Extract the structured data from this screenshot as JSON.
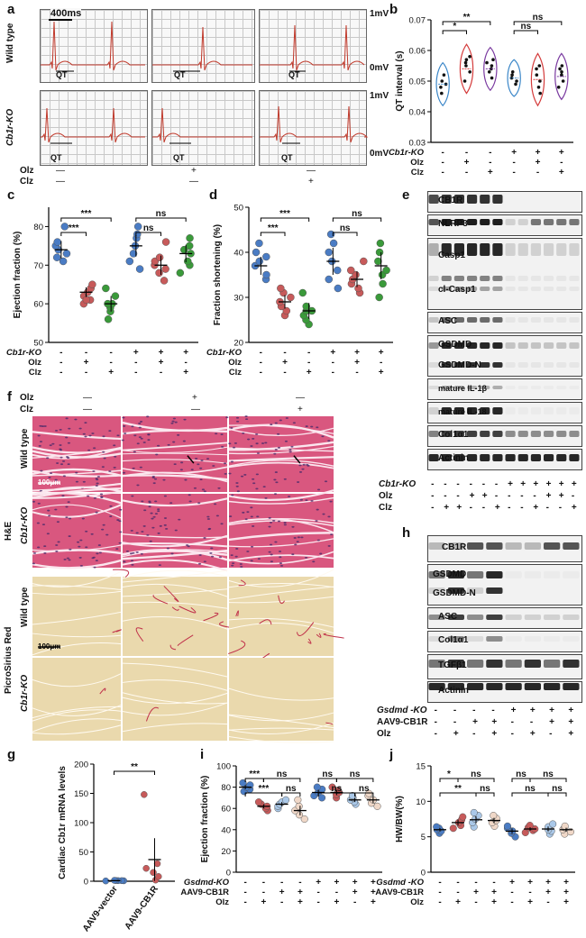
{
  "panel_letters": {
    "a": "a",
    "b": "b",
    "c": "c",
    "d": "d",
    "e": "e",
    "f": "f",
    "g": "g",
    "h": "h",
    "i": "i",
    "j": "j"
  },
  "panel_a": {
    "scale_time": "400ms",
    "row_labels": [
      "Wild type",
      "Cb1r-KO"
    ],
    "volt_labels": [
      "1mV",
      "0mV",
      "1mV",
      "0mV"
    ],
    "qt_label": "QT",
    "treat_rows": [
      {
        "label": "Olz",
        "values": [
          "—",
          "+",
          "—"
        ]
      },
      {
        "label": "Clz",
        "values": [
          "—",
          "—",
          "+"
        ]
      }
    ],
    "trace_color": "#c0392b"
  },
  "panel_b": {
    "treat_rows": [
      {
        "label": "Cb1r-KO",
        "values": [
          "-",
          "-",
          "-",
          "+",
          "+",
          "+"
        ]
      },
      {
        "label": "Olz",
        "values": [
          "-",
          "+",
          "-",
          "-",
          "+",
          "-"
        ]
      },
      {
        "label": "Clz",
        "values": [
          "-",
          "-",
          "+",
          "-",
          "-",
          "+"
        ]
      }
    ],
    "sig_labels": [
      "*",
      "**",
      "ns",
      "ns"
    ]
  },
  "panel_c": {
    "treat_rows": [
      {
        "label": "Cb1r-KO",
        "values": [
          "-",
          "-",
          "-",
          "+",
          "+",
          "+"
        ]
      },
      {
        "label": "Olz",
        "values": [
          "-",
          "+",
          "-",
          "-",
          "+",
          "-"
        ]
      },
      {
        "label": "Clz",
        "values": [
          "-",
          "-",
          "+",
          "-",
          "-",
          "+"
        ]
      }
    ],
    "sig_labels": [
      "***",
      "***",
      "ns",
      "ns"
    ]
  },
  "panel_d": {
    "treat_rows": [
      {
        "label": "Cb1r-KO",
        "values": [
          "-",
          "-",
          "-",
          "+",
          "+",
          "+"
        ]
      },
      {
        "label": "Olz",
        "values": [
          "-",
          "+",
          "-",
          "-",
          "+",
          "-"
        ]
      },
      {
        "label": "Clz",
        "values": [
          "-",
          "-",
          "+",
          "-",
          "-",
          "+"
        ]
      }
    ],
    "sig_labels": [
      "***",
      "***",
      "ns",
      "ns"
    ]
  },
  "panel_e": {
    "bands": [
      "CB1R",
      "NLRP3",
      "Casp1",
      "cl-Casp1",
      "ASC",
      "GSDMD",
      "GSDMD-N",
      "mature IL-1β",
      "mature IL-18",
      "Col1α1",
      "Actinin"
    ],
    "treat_rows": [
      {
        "label": "Cb1r-KO",
        "values": [
          "-",
          "-",
          "-",
          "-",
          "-",
          "-",
          "+",
          "+",
          "+",
          "+",
          "+",
          "+"
        ]
      },
      {
        "label": "Olz",
        "values": [
          "-",
          "-",
          "-",
          "+",
          "+",
          "-",
          "-",
          "-",
          "-",
          "+",
          "+",
          "-"
        ]
      },
      {
        "label": "Clz",
        "values": [
          "-",
          "+",
          "+",
          "-",
          "-",
          "+",
          "-",
          "-",
          "+",
          "-",
          "-",
          "+"
        ]
      }
    ]
  },
  "panel_f": {
    "col_treat": [
      {
        "label": "Olz",
        "values": [
          "—",
          "+",
          "—"
        ]
      },
      {
        "label": "Clz",
        "values": [
          "—",
          "—",
          "+"
        ]
      }
    ],
    "group_labels": [
      "H&E",
      "PicroSirius Red"
    ],
    "row_labels": [
      "Wild type",
      "Cb1r-KO",
      "Wild type",
      "Cb1r-KO"
    ],
    "scale_he": "100μm",
    "scale_psr": "100μm",
    "he_color": "#d9577f",
    "psr_color": "#ead9ad"
  },
  "panel_h": {
    "bands": [
      "CB1R",
      "GSDMD",
      "GSDMD-N",
      "ASC",
      "Col1α1",
      "TGFβ1",
      "Actinin"
    ],
    "treat_rows": [
      {
        "label": "Gsdmd -KO",
        "values": [
          "-",
          "-",
          "-",
          "-",
          "+",
          "+",
          "+",
          "+"
        ]
      },
      {
        "label": "AAV9-CB1R",
        "values": [
          "-",
          "-",
          "+",
          "+",
          "-",
          "-",
          "+",
          "+"
        ]
      },
      {
        "label": "Olz",
        "values": [
          "-",
          "+",
          "-",
          "+",
          "-",
          "+",
          "-",
          "+"
        ]
      }
    ]
  },
  "panel_i": {
    "treat_rows": [
      {
        "label": "Gsdmd-KO",
        "values": [
          "-",
          "-",
          "-",
          "-",
          "+",
          "+",
          "+",
          "+"
        ]
      },
      {
        "label": "AAV9-CB1R",
        "values": [
          "-",
          "-",
          "+",
          "+",
          "-",
          "-",
          "+",
          "+"
        ]
      },
      {
        "label": "Olz",
        "values": [
          "-",
          "+",
          "-",
          "+",
          "-",
          "+",
          "-",
          "+"
        ]
      }
    ],
    "sig_labels": [
      "***",
      "ns",
      "***",
      "ns",
      "ns",
      "ns",
      "ns",
      "ns"
    ]
  },
  "panel_j": {
    "treat_rows": [
      {
        "label": "Gsdmd -KO",
        "values": [
          "-",
          "-",
          "-",
          "-",
          "+",
          "+",
          "+",
          "+"
        ]
      },
      {
        "label": "AAV9-CB1R",
        "values": [
          "-",
          "-",
          "+",
          "+",
          "-",
          "-",
          "+",
          "+"
        ]
      },
      {
        "label": "Olz",
        "values": [
          "-",
          "+",
          "-",
          "+",
          "-",
          "+",
          "-",
          "+"
        ]
      }
    ],
    "sig_labels": [
      "*",
      "ns",
      "**",
      "ns",
      "ns",
      "ns",
      "ns",
      "ns"
    ]
  },
  "panel_g": {
    "sig_labels": [
      "**"
    ]
  },
  "chart_data": [
    {
      "id": "b",
      "type": "violin",
      "ylabel": "QT interval (s)",
      "ylim": [
        0.03,
        0.07
      ],
      "yticks": [
        0.03,
        0.04,
        0.05,
        0.06,
        0.07
      ],
      "colors": [
        "#3a86c8",
        "#d43a3a",
        "#7a3aa0",
        "#3a86c8",
        "#d43a3a",
        "#7a3aa0"
      ],
      "series": [
        {
          "values": [
            0.046,
            0.048,
            0.049,
            0.05,
            0.052
          ]
        },
        {
          "values": [
            0.05,
            0.053,
            0.055,
            0.056,
            0.057,
            0.058
          ]
        },
        {
          "values": [
            0.051,
            0.053,
            0.054,
            0.055,
            0.056,
            0.057
          ]
        },
        {
          "values": [
            0.049,
            0.05,
            0.051,
            0.052,
            0.053
          ]
        },
        {
          "values": [
            0.046,
            0.048,
            0.05,
            0.052,
            0.054,
            0.055
          ]
        },
        {
          "values": [
            0.048,
            0.05,
            0.052,
            0.053,
            0.054,
            0.055
          ]
        }
      ]
    },
    {
      "id": "c",
      "type": "scatter",
      "ylabel": "Ejection fraction (%)",
      "ylim": [
        50,
        85
      ],
      "yticks": [
        50,
        60,
        70,
        80
      ],
      "colors": [
        "#4a7cc4",
        "#c75a5a",
        "#3a9a3a",
        "#4a7cc4",
        "#c75a5a",
        "#3a9a3a"
      ],
      "series": [
        {
          "values": [
            71,
            73,
            74,
            75,
            76,
            80,
            72
          ],
          "mean": 74
        },
        {
          "values": [
            60,
            61,
            62,
            63,
            64,
            65,
            61
          ],
          "mean": 63
        },
        {
          "values": [
            56,
            58,
            59,
            60,
            60,
            62,
            64
          ],
          "mean": 60
        },
        {
          "values": [
            69,
            71,
            73,
            75,
            77,
            78,
            80
          ],
          "mean": 75
        },
        {
          "values": [
            66,
            68,
            69,
            70,
            71,
            72,
            76
          ],
          "mean": 70
        },
        {
          "values": [
            68,
            70,
            71,
            73,
            74,
            75,
            77
          ],
          "mean": 73
        }
      ]
    },
    {
      "id": "d",
      "type": "scatter",
      "ylabel": "Fraction shortening (%)",
      "ylim": [
        20,
        50
      ],
      "yticks": [
        20,
        30,
        40,
        50
      ],
      "colors": [
        "#4a7cc4",
        "#c75a5a",
        "#3a9a3a",
        "#4a7cc4",
        "#c75a5a",
        "#3a9a3a"
      ],
      "series": [
        {
          "values": [
            34,
            35,
            37,
            38,
            39,
            40,
            42
          ],
          "mean": 37
        },
        {
          "values": [
            26,
            27,
            28,
            29,
            30,
            31,
            32
          ],
          "mean": 29
        },
        {
          "values": [
            24,
            25,
            26,
            27,
            27,
            28,
            31
          ],
          "mean": 27
        },
        {
          "values": [
            32,
            34,
            36,
            38,
            40,
            42,
            44
          ],
          "mean": 38
        },
        {
          "values": [
            31,
            32,
            33,
            34,
            35,
            36,
            38
          ],
          "mean": 34
        },
        {
          "values": [
            30,
            33,
            35,
            36,
            38,
            40,
            42
          ],
          "mean": 37
        }
      ]
    },
    {
      "id": "g",
      "type": "scatter",
      "ylabel": "Cardiac Cb1r mRNA levels",
      "ylim": [
        0,
        200
      ],
      "yticks": [
        0,
        50,
        100,
        150,
        200
      ],
      "categories": [
        "AAV9-vector",
        "AAV9-CB1R"
      ],
      "colors": [
        "#4a7cc4",
        "#c75a5a"
      ],
      "series": [
        {
          "values": [
            0.5,
            0.8,
            1,
            1,
            1.2,
            1.5
          ],
          "mean": 1
        },
        {
          "values": [
            2,
            8,
            15,
            22,
            30,
            148
          ],
          "mean": 37
        }
      ]
    },
    {
      "id": "i",
      "type": "scatter",
      "ylabel": "Ejection fraction (%)",
      "ylim": [
        0,
        100
      ],
      "yticks": [
        0,
        20,
        40,
        60,
        80,
        100
      ],
      "colors": [
        "#4a7cc4",
        "#c75a5a",
        "#aac8e8",
        "#f0d8c8",
        "#4a7cc4",
        "#c75a5a",
        "#aac8e8",
        "#f0d8c8"
      ],
      "series": [
        {
          "values": [
            76,
            78,
            80,
            82,
            84
          ],
          "mean": 80
        },
        {
          "values": [
            58,
            60,
            62,
            64,
            66
          ],
          "mean": 62
        },
        {
          "values": [
            60,
            62,
            64,
            66,
            68
          ],
          "mean": 64
        },
        {
          "values": [
            50,
            54,
            58,
            62,
            68
          ],
          "mean": 58
        },
        {
          "values": [
            70,
            72,
            75,
            78,
            80
          ],
          "mean": 75
        },
        {
          "values": [
            70,
            73,
            75,
            77,
            80
          ],
          "mean": 75
        },
        {
          "values": [
            64,
            66,
            68,
            70,
            72
          ],
          "mean": 68
        },
        {
          "values": [
            62,
            65,
            68,
            72,
            74
          ],
          "mean": 68
        }
      ]
    },
    {
      "id": "j",
      "type": "scatter",
      "ylabel": "HW/BW(%)",
      "ylim": [
        0,
        15
      ],
      "yticks": [
        0,
        5,
        10,
        15
      ],
      "colors": [
        "#4a7cc4",
        "#c75a5a",
        "#aac8e8",
        "#f0d8c8",
        "#4a7cc4",
        "#c75a5a",
        "#aac8e8",
        "#f0d8c8"
      ],
      "series": [
        {
          "values": [
            5.5,
            5.8,
            6.0,
            6.2,
            6.4
          ],
          "mean": 6.0
        },
        {
          "values": [
            6.2,
            6.6,
            7.0,
            7.4,
            7.8
          ],
          "mean": 7.0
        },
        {
          "values": [
            6.4,
            7.0,
            7.5,
            8.0,
            8.4
          ],
          "mean": 7.4
        },
        {
          "values": [
            6.5,
            7.0,
            7.3,
            7.6,
            8.0
          ],
          "mean": 7.3
        },
        {
          "values": [
            5.0,
            5.5,
            5.8,
            6.2,
            6.5
          ],
          "mean": 5.8
        },
        {
          "values": [
            5.6,
            5.9,
            6.1,
            6.3,
            6.6
          ],
          "mean": 6.1
        },
        {
          "values": [
            5.4,
            5.8,
            6.0,
            6.4,
            6.8
          ],
          "mean": 6.1
        },
        {
          "values": [
            5.4,
            5.7,
            6.0,
            6.3,
            6.5
          ],
          "mean": 6.0
        }
      ]
    }
  ]
}
